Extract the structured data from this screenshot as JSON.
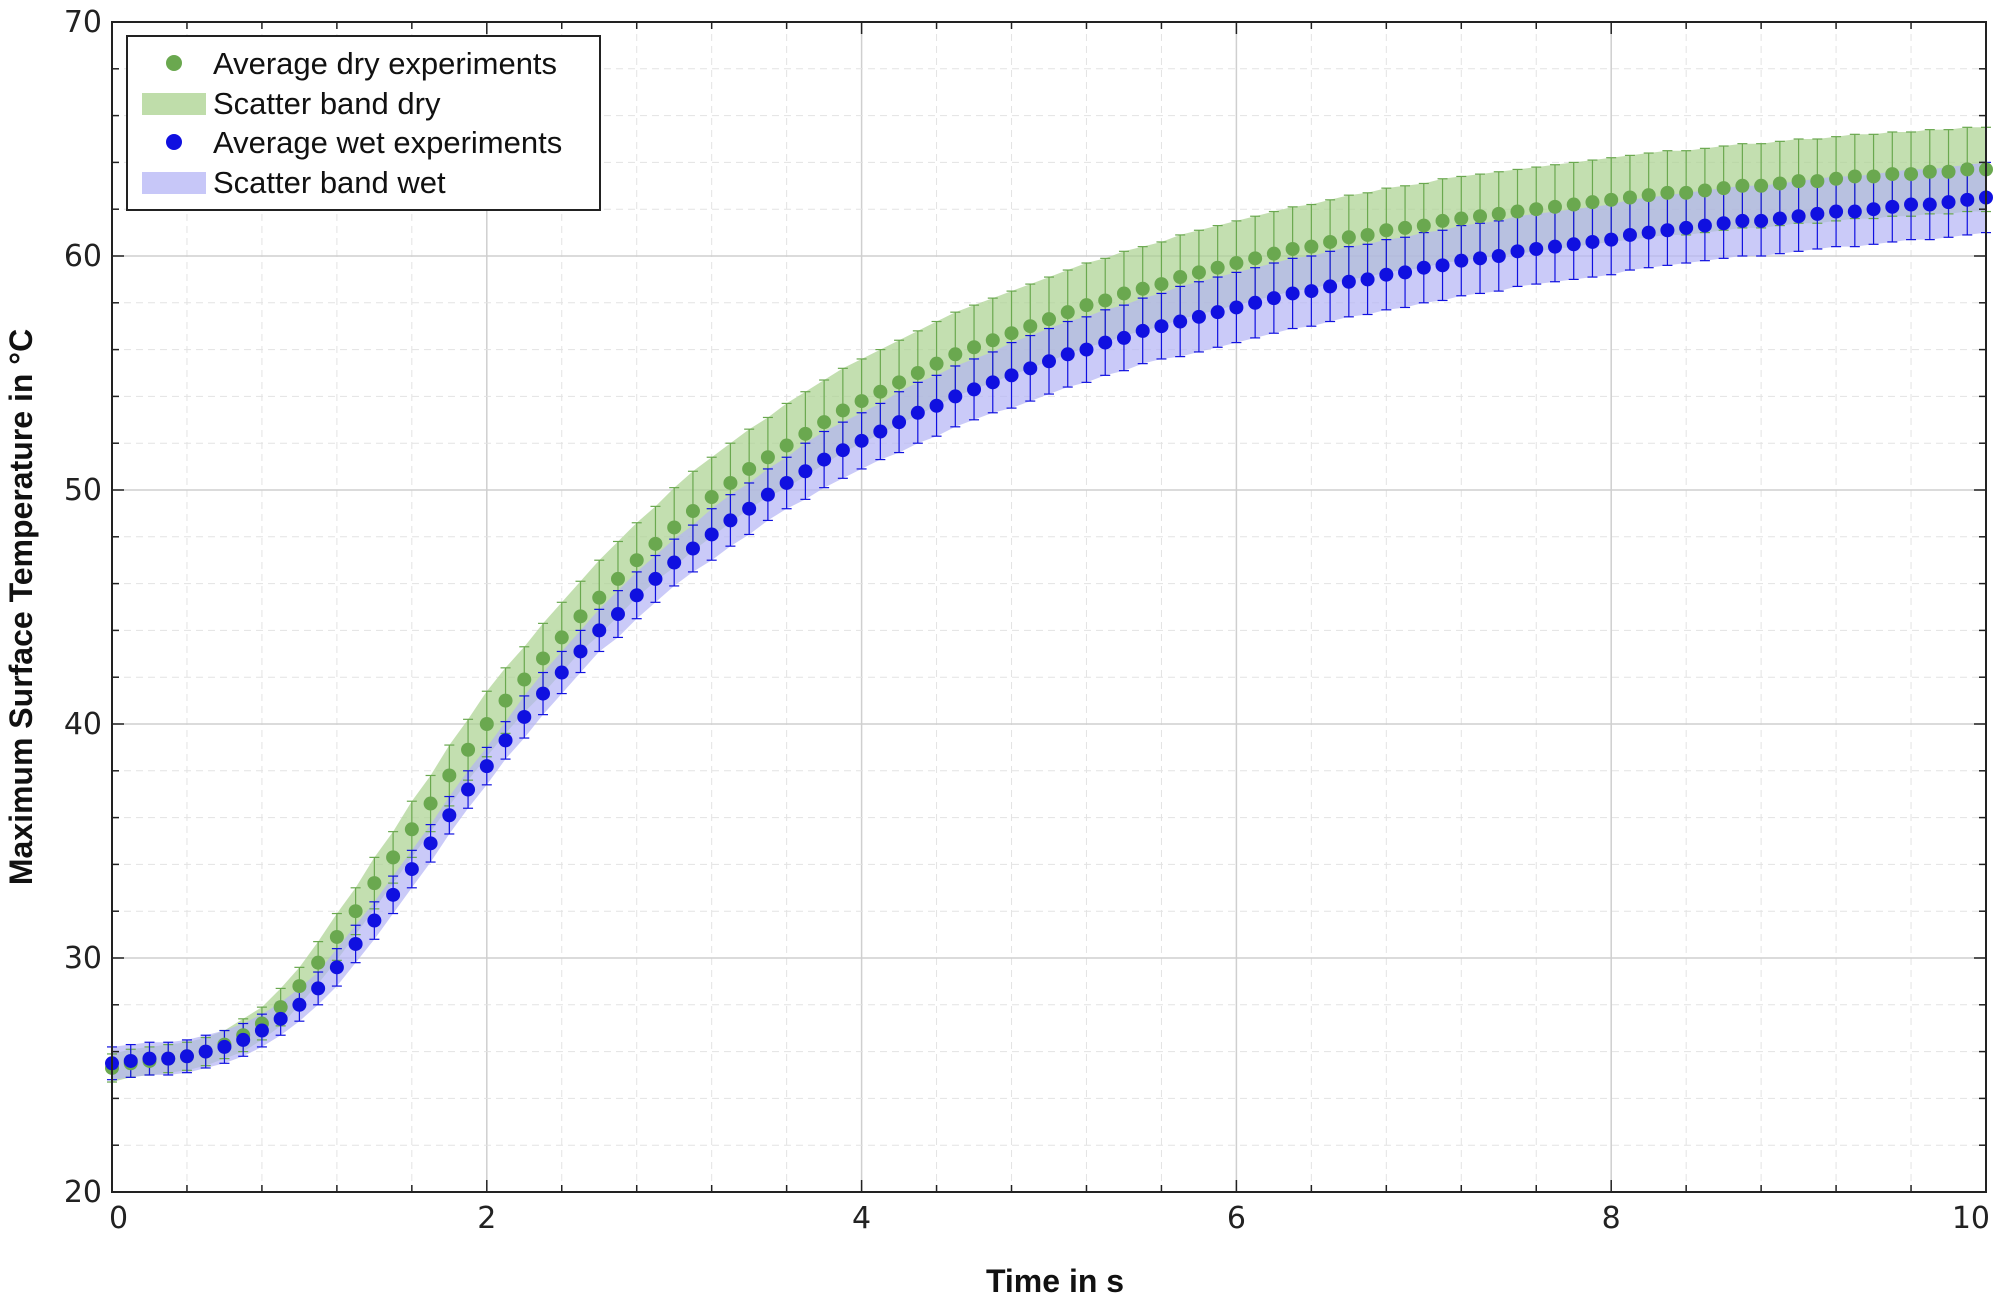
{
  "chart_data": {
    "type": "scatter",
    "title": "",
    "xlabel": "Time in s",
    "ylabel": "Maximum Surface Temperature in °C",
    "xlim": [
      0,
      10
    ],
    "ylim": [
      20,
      70
    ],
    "xticks": [
      0,
      2,
      4,
      6,
      8,
      10
    ],
    "yticks": [
      20,
      30,
      40,
      50,
      60,
      70
    ],
    "grid": true,
    "legend_position": "top-left",
    "colors": {
      "dry": "#6aa84f",
      "dry_band": "#a9d18e",
      "wet": "#1010e0",
      "wet_band": "#b4b4f5"
    },
    "legend": [
      {
        "label": "Average dry experiments",
        "kind": "marker",
        "series": "dry"
      },
      {
        "label": "Scatter band dry",
        "kind": "band",
        "series": "dry"
      },
      {
        "label": "Average wet experiments",
        "kind": "marker",
        "series": "wet"
      },
      {
        "label": "Scatter band wet",
        "kind": "band",
        "series": "wet"
      }
    ],
    "x": [
      0.0,
      0.1,
      0.2,
      0.3,
      0.4,
      0.5,
      0.6,
      0.7,
      0.8,
      0.9,
      1.0,
      1.1,
      1.2,
      1.3,
      1.4,
      1.5,
      1.6,
      1.7,
      1.8,
      1.9,
      2.0,
      2.1,
      2.2,
      2.3,
      2.4,
      2.5,
      2.6,
      2.7,
      2.8,
      2.9,
      3.0,
      3.1,
      3.2,
      3.3,
      3.4,
      3.5,
      3.6,
      3.7,
      3.8,
      3.9,
      4.0,
      4.1,
      4.2,
      4.3,
      4.4,
      4.5,
      4.6,
      4.7,
      4.8,
      4.9,
      5.0,
      5.1,
      5.2,
      5.3,
      5.4,
      5.5,
      5.6,
      5.7,
      5.8,
      5.9,
      6.0,
      6.1,
      6.2,
      6.3,
      6.4,
      6.5,
      6.6,
      6.7,
      6.8,
      6.9,
      7.0,
      7.1,
      7.2,
      7.3,
      7.4,
      7.5,
      7.6,
      7.7,
      7.8,
      7.9,
      8.0,
      8.1,
      8.2,
      8.3,
      8.4,
      8.5,
      8.6,
      8.7,
      8.8,
      8.9,
      9.0,
      9.1,
      9.2,
      9.3,
      9.4,
      9.5,
      9.6,
      9.7,
      9.8,
      9.9,
      10.0
    ],
    "series": [
      {
        "name": "Average dry experiments",
        "key": "dry",
        "values": [
          25.3,
          25.5,
          25.6,
          25.7,
          25.8,
          26.0,
          26.3,
          26.7,
          27.2,
          27.9,
          28.8,
          29.8,
          30.9,
          32.0,
          33.2,
          34.3,
          35.5,
          36.6,
          37.8,
          38.9,
          40.0,
          41.0,
          41.9,
          42.8,
          43.7,
          44.6,
          45.4,
          46.2,
          47.0,
          47.7,
          48.4,
          49.1,
          49.7,
          50.3,
          50.9,
          51.4,
          51.9,
          52.4,
          52.9,
          53.4,
          53.8,
          54.2,
          54.6,
          55.0,
          55.4,
          55.8,
          56.1,
          56.4,
          56.7,
          57.0,
          57.3,
          57.6,
          57.9,
          58.1,
          58.4,
          58.6,
          58.8,
          59.1,
          59.3,
          59.5,
          59.7,
          59.9,
          60.1,
          60.3,
          60.4,
          60.6,
          60.8,
          60.9,
          61.1,
          61.2,
          61.3,
          61.5,
          61.6,
          61.7,
          61.8,
          61.9,
          62.0,
          62.1,
          62.2,
          62.3,
          62.4,
          62.5,
          62.6,
          62.7,
          62.7,
          62.8,
          62.9,
          63.0,
          63.0,
          63.1,
          63.2,
          63.2,
          63.3,
          63.4,
          63.4,
          63.5,
          63.5,
          63.6,
          63.6,
          63.7,
          63.7
        ],
        "error": [
          0.6,
          0.6,
          0.6,
          0.6,
          0.6,
          0.6,
          0.6,
          0.7,
          0.7,
          0.8,
          0.8,
          0.9,
          1.0,
          1.0,
          1.1,
          1.1,
          1.2,
          1.2,
          1.3,
          1.3,
          1.4,
          1.4,
          1.4,
          1.5,
          1.5,
          1.5,
          1.6,
          1.6,
          1.6,
          1.6,
          1.7,
          1.7,
          1.7,
          1.7,
          1.7,
          1.7,
          1.8,
          1.8,
          1.8,
          1.8,
          1.8,
          1.8,
          1.8,
          1.8,
          1.8,
          1.8,
          1.8,
          1.8,
          1.8,
          1.8,
          1.8,
          1.8,
          1.8,
          1.8,
          1.8,
          1.8,
          1.8,
          1.8,
          1.8,
          1.8,
          1.8,
          1.8,
          1.8,
          1.8,
          1.8,
          1.8,
          1.8,
          1.8,
          1.8,
          1.8,
          1.8,
          1.8,
          1.8,
          1.8,
          1.8,
          1.8,
          1.8,
          1.8,
          1.8,
          1.8,
          1.8,
          1.8,
          1.8,
          1.8,
          1.8,
          1.8,
          1.8,
          1.8,
          1.8,
          1.8,
          1.8,
          1.8,
          1.8,
          1.8,
          1.8,
          1.8,
          1.8,
          1.8,
          1.8,
          1.8,
          1.8
        ]
      },
      {
        "name": "Average wet experiments",
        "key": "wet",
        "values": [
          25.5,
          25.6,
          25.7,
          25.7,
          25.8,
          26.0,
          26.2,
          26.5,
          26.9,
          27.4,
          28.0,
          28.7,
          29.6,
          30.6,
          31.6,
          32.7,
          33.8,
          34.9,
          36.1,
          37.2,
          38.2,
          39.3,
          40.3,
          41.3,
          42.2,
          43.1,
          44.0,
          44.7,
          45.5,
          46.2,
          46.9,
          47.5,
          48.1,
          48.7,
          49.2,
          49.8,
          50.3,
          50.8,
          51.3,
          51.7,
          52.1,
          52.5,
          52.9,
          53.3,
          53.6,
          54.0,
          54.3,
          54.6,
          54.9,
          55.2,
          55.5,
          55.8,
          56.0,
          56.3,
          56.5,
          56.8,
          57.0,
          57.2,
          57.4,
          57.6,
          57.8,
          58.0,
          58.2,
          58.4,
          58.5,
          58.7,
          58.9,
          59.0,
          59.2,
          59.3,
          59.5,
          59.6,
          59.8,
          59.9,
          60.0,
          60.2,
          60.3,
          60.4,
          60.5,
          60.6,
          60.7,
          60.9,
          61.0,
          61.1,
          61.2,
          61.3,
          61.4,
          61.5,
          61.5,
          61.6,
          61.7,
          61.8,
          61.9,
          61.9,
          62.0,
          62.1,
          62.2,
          62.2,
          62.3,
          62.4,
          62.5
        ],
        "error": [
          0.7,
          0.7,
          0.7,
          0.7,
          0.7,
          0.7,
          0.7,
          0.7,
          0.7,
          0.7,
          0.7,
          0.7,
          0.8,
          0.8,
          0.8,
          0.8,
          0.8,
          0.8,
          0.8,
          0.8,
          0.8,
          0.8,
          0.9,
          0.9,
          0.9,
          0.9,
          0.9,
          1.0,
          1.0,
          1.0,
          1.0,
          1.0,
          1.1,
          1.1,
          1.1,
          1.1,
          1.1,
          1.2,
          1.2,
          1.2,
          1.2,
          1.2,
          1.3,
          1.3,
          1.3,
          1.3,
          1.3,
          1.3,
          1.4,
          1.4,
          1.4,
          1.4,
          1.4,
          1.4,
          1.4,
          1.4,
          1.4,
          1.5,
          1.5,
          1.5,
          1.5,
          1.5,
          1.5,
          1.5,
          1.5,
          1.5,
          1.5,
          1.5,
          1.5,
          1.5,
          1.5,
          1.5,
          1.5,
          1.5,
          1.5,
          1.5,
          1.5,
          1.5,
          1.5,
          1.5,
          1.5,
          1.5,
          1.5,
          1.5,
          1.5,
          1.5,
          1.5,
          1.5,
          1.5,
          1.5,
          1.5,
          1.5,
          1.5,
          1.5,
          1.5,
          1.5,
          1.5,
          1.5,
          1.5,
          1.5,
          1.5
        ]
      }
    ]
  }
}
